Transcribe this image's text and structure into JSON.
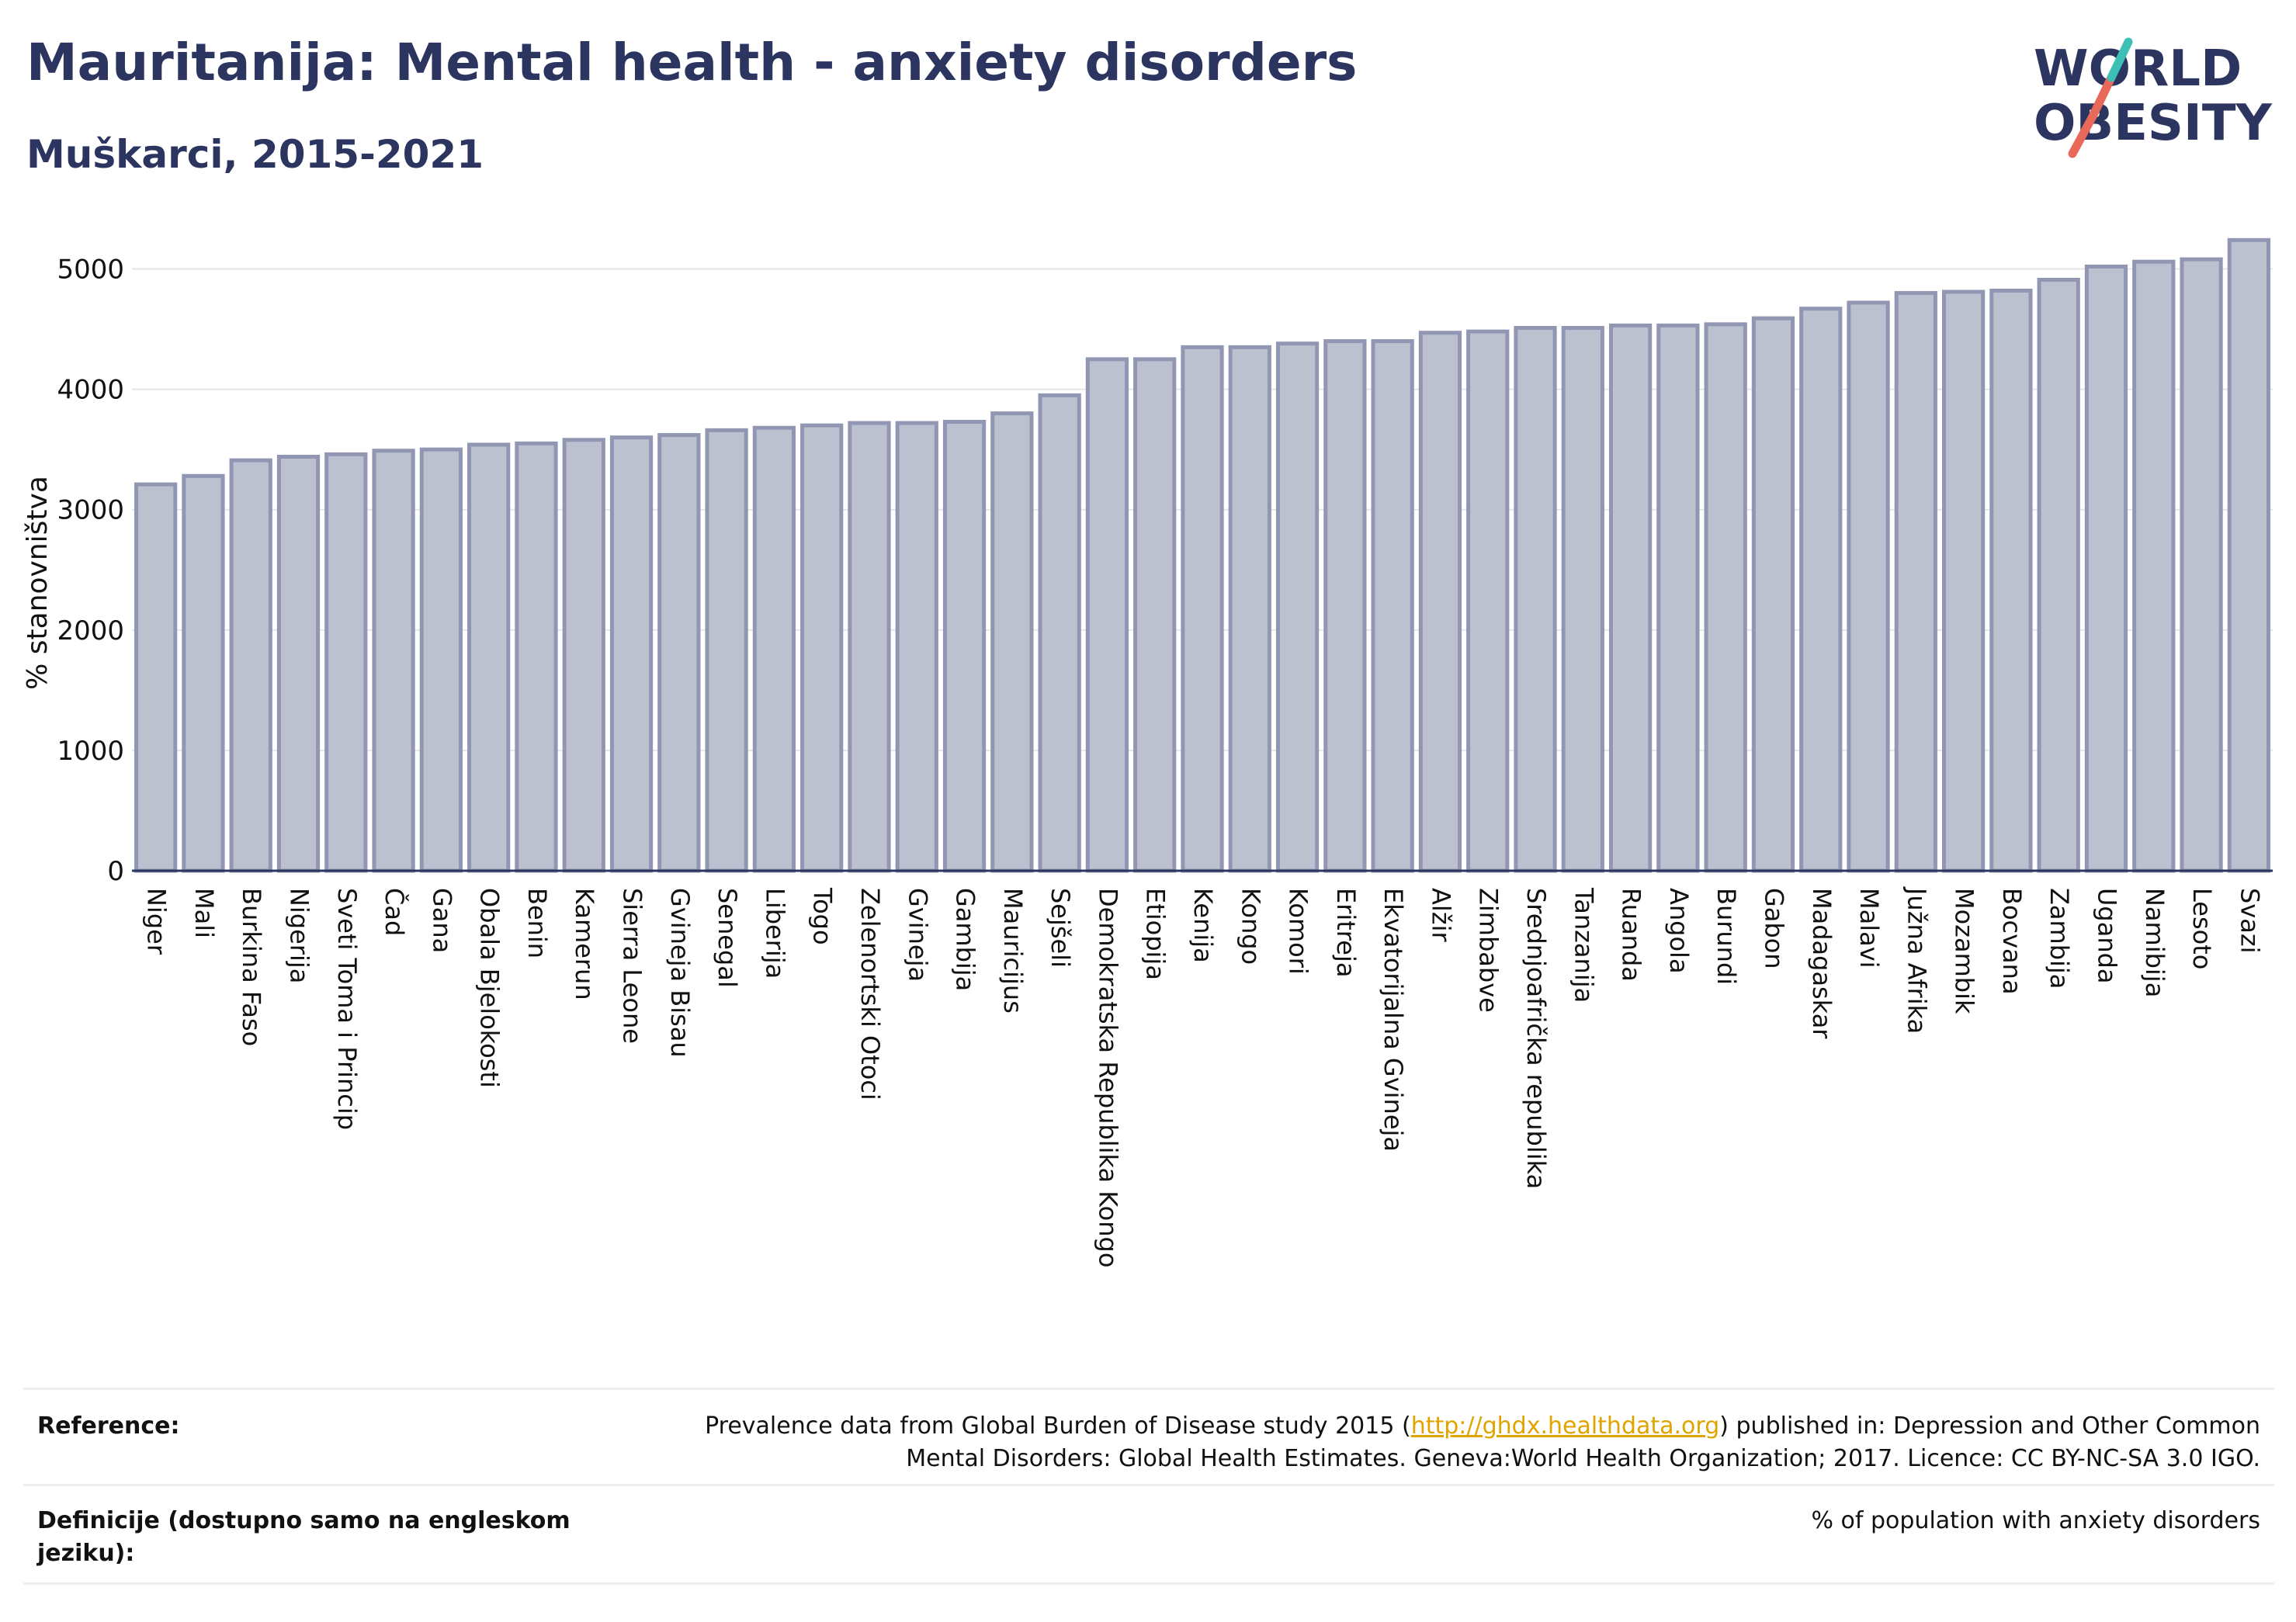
{
  "header": {
    "title": "Mauritanija: Mental health - anxiety disorders",
    "subtitle": "Muškarci, 2015-2021"
  },
  "logo": {
    "line1": "WORLD",
    "line2": "OBESITY",
    "colors": {
      "text": "#2b3560",
      "slash_teal": "#3cbfb4",
      "slash_red": "#e8695a"
    }
  },
  "chart_data": {
    "type": "bar",
    "ylabel": "% stanovništva",
    "ylim": [
      0,
      5300
    ],
    "yticks": [
      0,
      1000,
      2000,
      3000,
      4000,
      5000
    ],
    "grid": true,
    "colors": {
      "bar_fill": "#bcc0cf",
      "bar_stroke": "#9196b3",
      "axis": "#2b3560"
    },
    "categories": [
      "Niger",
      "Mali",
      "Burkina Faso",
      "Nigerija",
      "Sveti Toma i Princip",
      "Čad",
      "Gana",
      "Obala Bjelokosti",
      "Benin",
      "Kamerun",
      "Sierra Leone",
      "Gvineja Bisau",
      "Senegal",
      "Liberija",
      "Togo",
      "Zelenortski Otoci",
      "Gvineja",
      "Gambija",
      "Mauricijus",
      "Sejšeli",
      "Demokratska Republika Kongo",
      "Etiopija",
      "Kenija",
      "Kongo",
      "Komori",
      "Eritreja",
      "Ekvatorijalna Gvineja",
      "Alžir",
      "Zimbabve",
      "Srednjoafrička republika",
      "Tanzanija",
      "Ruanda",
      "Angola",
      "Burundi",
      "Gabon",
      "Madagaskar",
      "Malavi",
      "Južna Afrika",
      "Mozambik",
      "Bocvana",
      "Zambija",
      "Uganda",
      "Namibija",
      "Lesoto",
      "Svazi"
    ],
    "values": [
      3210,
      3280,
      3410,
      3440,
      3460,
      3490,
      3500,
      3540,
      3550,
      3580,
      3600,
      3620,
      3660,
      3680,
      3700,
      3720,
      3720,
      3730,
      3800,
      3950,
      4250,
      4250,
      4350,
      4350,
      4380,
      4400,
      4400,
      4470,
      4480,
      4510,
      4510,
      4530,
      4530,
      4540,
      4590,
      4670,
      4720,
      4800,
      4810,
      4820,
      4910,
      5020,
      5060,
      5080,
      5240
    ]
  },
  "footer": {
    "reference_label": "Reference:",
    "reference_pre": "Prevalence data from Global Burden of Disease study 2015 (",
    "reference_link": "http://ghdx.healthdata.org",
    "reference_post": ") published in: Depression and Other Common",
    "reference_line2": "Mental Disorders: Global Health Estimates. Geneva:World Health Organization; 2017. Licence: CC BY-NC-SA 3.0 IGO.",
    "definition_label_line1": "Definicije (dostupno samo na engleskom",
    "definition_label_line2": "jeziku):",
    "definition_text": "% of population with anxiety disorders"
  }
}
